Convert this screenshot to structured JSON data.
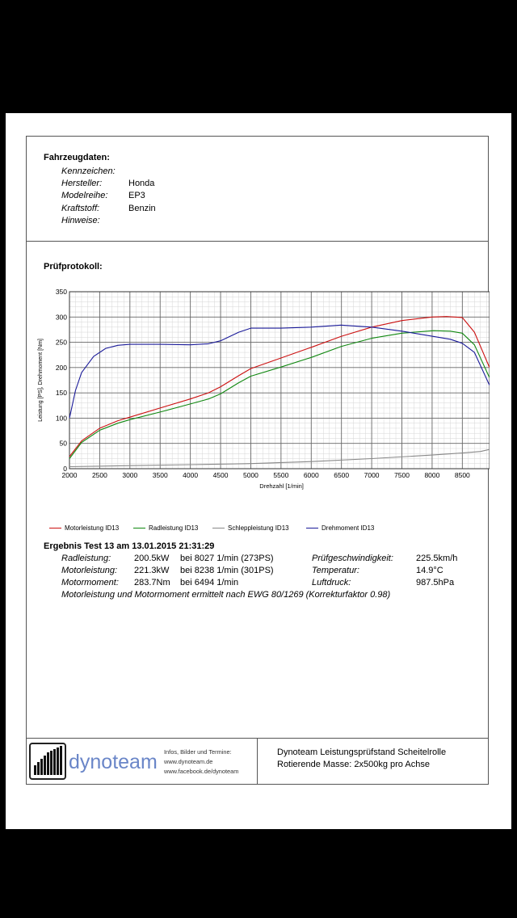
{
  "vehicle": {
    "heading": "Fahrzeugdaten:",
    "fields": [
      {
        "label": "Kennzeichen:",
        "value": ""
      },
      {
        "label": "Hersteller:",
        "value": "Honda"
      },
      {
        "label": "Modelreihe:",
        "value": "EP3"
      },
      {
        "label": "Kraftstoff:",
        "value": "Benzin"
      },
      {
        "label": "Hinweise:",
        "value": ""
      }
    ]
  },
  "protocol": {
    "heading": "Prüfprotokoll:"
  },
  "chart_data": {
    "type": "line",
    "xlabel": "Drehzahl [1/min]",
    "ylabel": "Leistung [PS], Drehmoment [Nm]",
    "xlim": [
      2000,
      8950
    ],
    "ylim": [
      0,
      350
    ],
    "x_ticks": [
      2000,
      2500,
      3000,
      3500,
      4000,
      4500,
      5000,
      5500,
      6000,
      6500,
      7000,
      7500,
      8000,
      8500
    ],
    "y_ticks": [
      0,
      50,
      100,
      150,
      200,
      250,
      300,
      350
    ],
    "grid": true,
    "series": [
      {
        "name": "Motorleistung ID13",
        "color": "#cc1111",
        "x": [
          2000,
          2200,
          2500,
          2800,
          3000,
          3500,
          4000,
          4300,
          4500,
          4800,
          5000,
          5500,
          6000,
          6500,
          7000,
          7500,
          8000,
          8238,
          8500,
          8700,
          8950
        ],
        "y": [
          24,
          55,
          80,
          95,
          102,
          120,
          138,
          150,
          162,
          184,
          198,
          219,
          240,
          262,
          280,
          293,
          300,
          301,
          299,
          270,
          200
        ]
      },
      {
        "name": "Radleistung ID13",
        "color": "#118811",
        "x": [
          2000,
          2200,
          2500,
          2800,
          3000,
          3500,
          4000,
          4300,
          4500,
          4800,
          5000,
          5500,
          6000,
          6500,
          7000,
          7500,
          8027,
          8300,
          8500,
          8700,
          8950
        ],
        "y": [
          20,
          52,
          76,
          90,
          97,
          112,
          128,
          138,
          148,
          170,
          183,
          201,
          220,
          242,
          258,
          268,
          273,
          272,
          268,
          245,
          180
        ]
      },
      {
        "name": "Schleppleistung ID13",
        "color": "#888888",
        "x": [
          2000,
          3000,
          4000,
          5000,
          6000,
          7000,
          8000,
          8500,
          8800,
          8950
        ],
        "y": [
          4,
          6,
          8,
          10,
          14,
          20,
          27,
          31,
          34,
          38
        ]
      },
      {
        "name": "Drehmoment ID13",
        "color": "#1a1a99",
        "x": [
          2000,
          2100,
          2200,
          2400,
          2600,
          2800,
          3000,
          3500,
          4000,
          4300,
          4500,
          4800,
          5000,
          5500,
          6000,
          6494,
          7000,
          7500,
          8000,
          8300,
          8500,
          8700,
          8950
        ],
        "y": [
          100,
          155,
          190,
          222,
          238,
          244,
          246,
          246,
          245,
          247,
          253,
          270,
          278,
          278,
          280,
          284,
          280,
          272,
          262,
          256,
          248,
          230,
          165
        ]
      }
    ]
  },
  "result": {
    "title": "Ergebnis Test 13 am 13.01.2015 21:31:29",
    "rows": [
      {
        "label": "Radleistung:",
        "value": "200.5kW",
        "detail": "bei 8027 1/min (273PS)",
        "label2": "Prüfgeschwindigkeit:",
        "value2": "225.5km/h"
      },
      {
        "label": "Motorleistung:",
        "value": "221.3kW",
        "detail": "bei 8238 1/min (301PS)",
        "label2": "Temperatur:",
        "value2": "14.9°C"
      },
      {
        "label": "Motormoment:",
        "value": "283.7Nm",
        "detail": "bei 6494 1/min",
        "label2": "Luftdruck:",
        "value2": "987.5hPa"
      }
    ],
    "note": "Motorleistung und Motormoment ermittelt nach EWG 80/1269 (Korrekturfaktor 0.98)"
  },
  "footer": {
    "brand": "dynoteam",
    "info_lines": [
      "Infos, Bilder und Termine:",
      "www.dynoteam.de",
      "www.facebook.de/dynoteam"
    ],
    "line1": "Dynoteam Leistungsprüfstand Scheitelrolle",
    "line2": "Rotierende Masse: 2x500kg pro Achse"
  },
  "colors": {
    "motor": "#cc1111",
    "rad": "#118811",
    "schlepp": "#888888",
    "moment": "#1a1a99",
    "brand": "#6a86c8"
  }
}
